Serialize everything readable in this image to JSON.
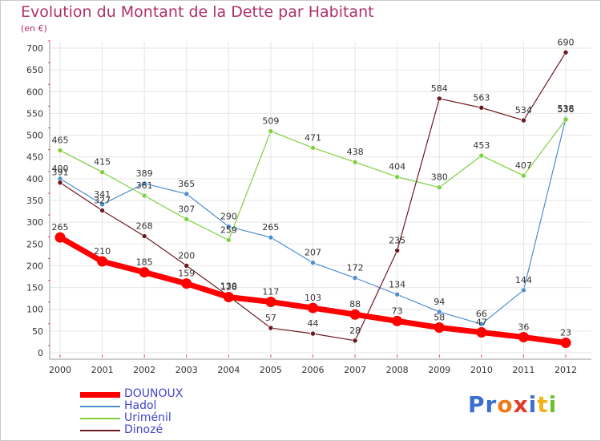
{
  "chart_data": {
    "type": "line",
    "title": "Evolution du Montant de la Dette par Habitant",
    "subtitle": "(en €)",
    "x": [
      "2000",
      "2001",
      "2002",
      "2003",
      "2004",
      "2005",
      "2006",
      "2007",
      "2008",
      "2009",
      "2010",
      "2011",
      "2012"
    ],
    "ylim": [
      0,
      700
    ],
    "yticks": [
      "0",
      "50",
      "100",
      "150",
      "200",
      "250",
      "300",
      "350",
      "400",
      "450",
      "500",
      "550",
      "600",
      "650",
      "700"
    ],
    "grid": true,
    "legend_position": "bottom-left",
    "series": [
      {
        "name": "DOUNOUX",
        "color": "#ff0000",
        "values": [
          265,
          210,
          185,
          159,
          128,
          117,
          103,
          88,
          73,
          58,
          47,
          36,
          23
        ]
      },
      {
        "name": "Hadol",
        "color": "#4f8ed0",
        "values": [
          400,
          341,
          389,
          365,
          290,
          265,
          207,
          172,
          134,
          94,
          66,
          144,
          538
        ]
      },
      {
        "name": "Uriménil",
        "color": "#7fcf3f",
        "values": [
          465,
          415,
          361,
          307,
          259,
          509,
          471,
          438,
          404,
          380,
          453,
          407,
          536
        ]
      },
      {
        "name": "Dinozé",
        "color": "#6b1a1f",
        "values": [
          391,
          327,
          268,
          200,
          130,
          57,
          44,
          28,
          235,
          584,
          563,
          534,
          690
        ]
      }
    ]
  },
  "brand": {
    "text": "Proxiti",
    "letters": [
      "P",
      "r",
      "o",
      "x",
      "i",
      "t",
      "i"
    ],
    "colors": [
      "#3a6fd1",
      "#3a6fd1",
      "#f07a1a",
      "#e23a2a",
      "#3a6fd1",
      "#f2b21a",
      "#6fbf2a"
    ]
  }
}
